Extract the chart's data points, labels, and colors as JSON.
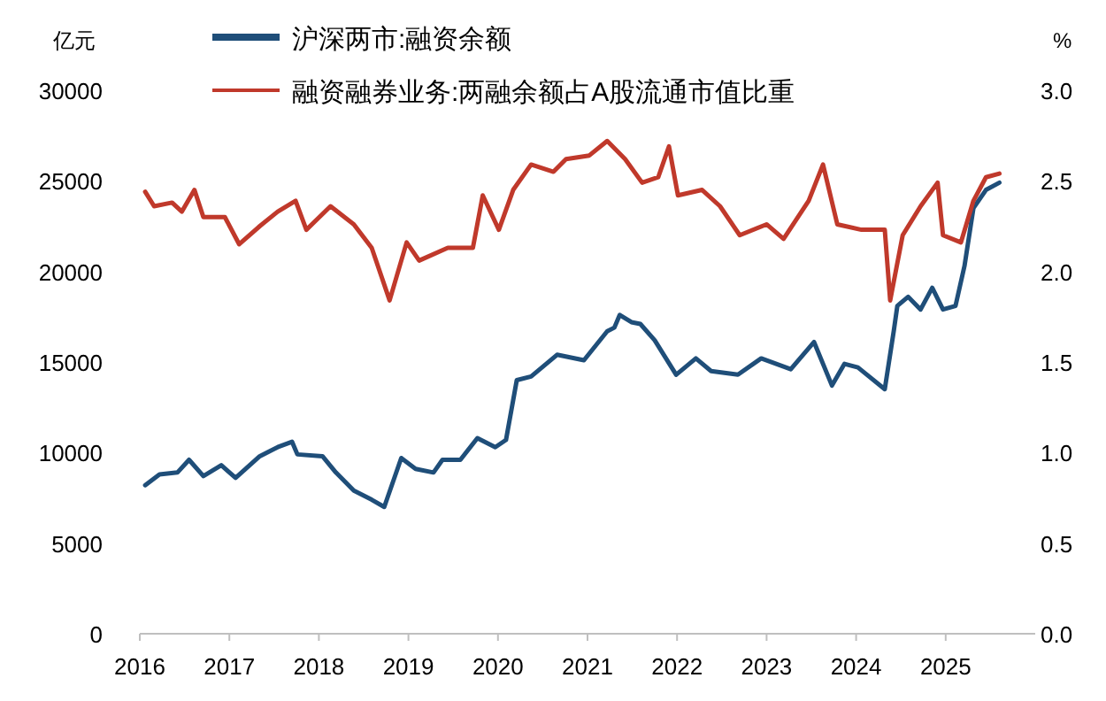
{
  "chart_data": {
    "type": "line",
    "ylabel": "亿元",
    "y2label": "%",
    "legend": "top",
    "grid": false,
    "line_style": "solid",
    "marker": "none",
    "xlim": [
      2016,
      2026
    ],
    "xticks": [
      2016,
      2017,
      2018,
      2019,
      2020,
      2021,
      2022,
      2023,
      2024,
      2025
    ],
    "ylim": [
      0,
      30000
    ],
    "yticks": [
      0,
      5000,
      10000,
      15000,
      20000,
      25000,
      30000
    ],
    "y2lim": [
      0,
      3
    ],
    "y2ticks": [
      {
        "value": 0,
        "label": "0.0"
      },
      {
        "value": 0.5,
        "label": "0.5"
      },
      {
        "value": 1,
        "label": "1.0"
      },
      {
        "value": 1.5,
        "label": "1.5"
      },
      {
        "value": 2,
        "label": "2.0"
      },
      {
        "value": 2.5,
        "label": "2.5"
      },
      {
        "value": 3,
        "label": "3.0"
      }
    ],
    "series": [
      {
        "name": "沪深两市:融资余额",
        "color": "#1f4e79",
        "axis": "y",
        "x": [
          2016.06,
          2016.22,
          2016.42,
          2016.55,
          2016.71,
          2016.91,
          2017.07,
          2017.34,
          2017.54,
          2017.7,
          2017.76,
          2018.04,
          2018.19,
          2018.39,
          2018.59,
          2018.73,
          2018.92,
          2019.08,
          2019.28,
          2019.38,
          2019.58,
          2019.77,
          2019.97,
          2020.09,
          2020.21,
          2020.37,
          2020.66,
          2020.96,
          2021.22,
          2021.3,
          2021.36,
          2021.49,
          2021.59,
          2021.75,
          2021.99,
          2022.21,
          2022.38,
          2022.68,
          2022.94,
          2023.27,
          2023.53,
          2023.73,
          2023.87,
          2024.02,
          2024.32,
          2024.42,
          2024.46,
          2024.58,
          2024.72,
          2024.85,
          2024.97,
          2025.11,
          2025.21,
          2025.31,
          2025.45,
          2025.6
        ],
        "values": [
          8200,
          8800,
          8900,
          9600,
          8700,
          9300,
          8600,
          9800,
          10300,
          10600,
          9900,
          9800,
          8900,
          7900,
          7400,
          7000,
          9700,
          9100,
          8900,
          9600,
          9600,
          10800,
          10300,
          10700,
          14000,
          14200,
          15400,
          15100,
          16700,
          16900,
          17600,
          17200,
          17100,
          16200,
          14300,
          15200,
          14500,
          14300,
          15200,
          14600,
          16100,
          13700,
          14900,
          14700,
          13500,
          16700,
          18100,
          18600,
          17900,
          19100,
          17900,
          18100,
          20300,
          23500,
          24500,
          24900
        ]
      },
      {
        "name": "融资融券业务:两融余额占A股流通市值比重",
        "color": "#c0392b",
        "axis": "y2",
        "x": [
          2016.06,
          2016.16,
          2016.36,
          2016.47,
          2016.61,
          2016.71,
          2016.95,
          2017.11,
          2017.34,
          2017.54,
          2017.74,
          2017.86,
          2018.13,
          2018.39,
          2018.59,
          2018.79,
          2018.98,
          2019.12,
          2019.44,
          2019.72,
          2019.83,
          2020.01,
          2020.17,
          2020.37,
          2020.62,
          2020.76,
          2021.02,
          2021.22,
          2021.42,
          2021.61,
          2021.79,
          2021.91,
          2022.01,
          2022.28,
          2022.48,
          2022.7,
          2023.0,
          2023.19,
          2023.47,
          2023.63,
          2023.79,
          2024.06,
          2024.32,
          2024.38,
          2024.52,
          2024.72,
          2024.91,
          2024.97,
          2025.17,
          2025.31,
          2025.45,
          2025.6
        ],
        "values": [
          2.44,
          2.36,
          2.38,
          2.33,
          2.45,
          2.3,
          2.3,
          2.15,
          2.25,
          2.33,
          2.39,
          2.23,
          2.36,
          2.26,
          2.13,
          1.84,
          2.16,
          2.06,
          2.13,
          2.13,
          2.42,
          2.23,
          2.45,
          2.59,
          2.55,
          2.62,
          2.64,
          2.72,
          2.62,
          2.49,
          2.52,
          2.69,
          2.42,
          2.45,
          2.36,
          2.2,
          2.26,
          2.18,
          2.39,
          2.59,
          2.26,
          2.23,
          2.23,
          1.84,
          2.2,
          2.36,
          2.49,
          2.2,
          2.16,
          2.39,
          2.52,
          2.54
        ]
      }
    ]
  }
}
